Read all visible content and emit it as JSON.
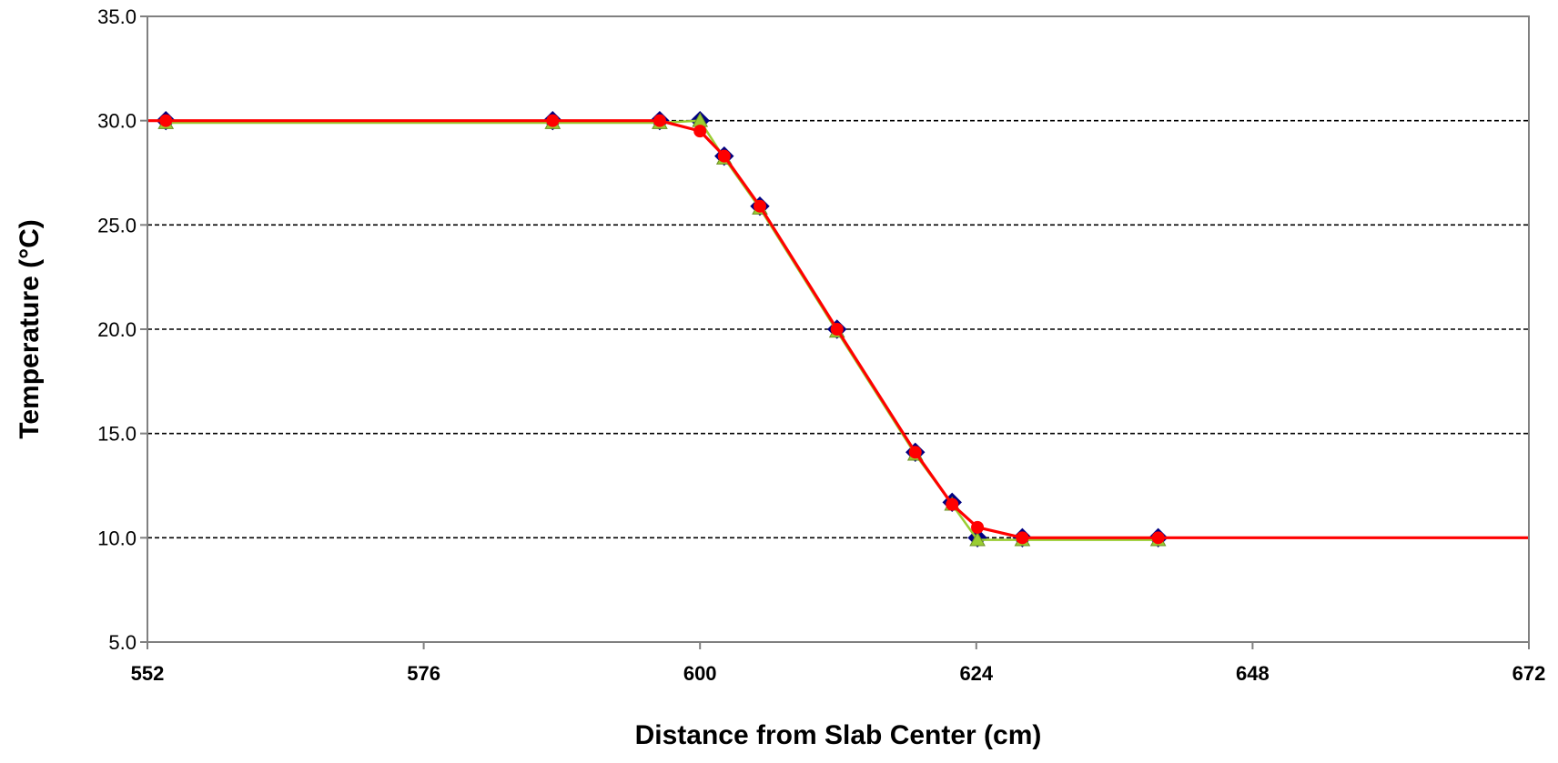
{
  "chart_data": {
    "type": "line",
    "title": "",
    "xlabel": "Distance from Slab Center (cm)",
    "ylabel": "Temperature (°C)",
    "xlim": [
      552,
      672
    ],
    "ylim": [
      5,
      35
    ],
    "x_ticks": [
      552,
      576,
      600,
      624,
      648,
      672
    ],
    "y_ticks": [
      5,
      10,
      15,
      20,
      25,
      30,
      35
    ],
    "x_tick_labels": [
      "552",
      "576",
      "600",
      "624",
      "648",
      "672"
    ],
    "y_tick_labels": [
      "5.0",
      "10.0",
      "15.0",
      "20.0",
      "25.0",
      "30.0",
      "35.0"
    ],
    "grid": "horizontal dashed",
    "legend": "none",
    "series": [
      {
        "color": "#000080",
        "marker": "diamond",
        "line": "none",
        "x": [
          553.6,
          587.2,
          596.5,
          600.0,
          602.1,
          605.2,
          611.9,
          618.7,
          621.9,
          624.1,
          628.0,
          639.8
        ],
        "y": [
          30.0,
          30.0,
          30.0,
          30.0,
          28.3,
          25.9,
          20.0,
          14.1,
          11.7,
          10.0,
          10.0,
          10.0
        ]
      },
      {
        "color": "#9ACD32",
        "marker": "triangle",
        "line": "solid",
        "x": [
          553.6,
          587.2,
          596.5,
          600.0,
          602.1,
          605.2,
          611.9,
          618.7,
          621.9,
          624.1,
          628.0,
          639.8
        ],
        "y": [
          29.9,
          29.9,
          29.9,
          30.0,
          28.2,
          25.8,
          19.9,
          14.0,
          11.6,
          9.9,
          9.9,
          9.9
        ]
      },
      {
        "color": "#FF0000",
        "marker": "circle",
        "line": "solid",
        "line_x": [
          552,
          553.6,
          587.2,
          596.5,
          600.0,
          602.1,
          605.2,
          611.9,
          618.7,
          621.9,
          624.1,
          628.0,
          639.8,
          672
        ],
        "line_y": [
          30.0,
          30.0,
          30.0,
          30.0,
          29.5,
          28.3,
          25.9,
          20.0,
          14.1,
          11.6,
          10.5,
          10.0,
          10.0,
          10.0
        ],
        "x": [
          553.6,
          587.2,
          596.5,
          600.0,
          602.1,
          605.2,
          611.9,
          618.7,
          621.9,
          624.1,
          628.0,
          639.8
        ],
        "y": [
          30.0,
          30.0,
          30.0,
          29.5,
          28.3,
          25.9,
          20.0,
          14.1,
          11.6,
          10.5,
          10.0,
          10.0
        ]
      }
    ]
  }
}
